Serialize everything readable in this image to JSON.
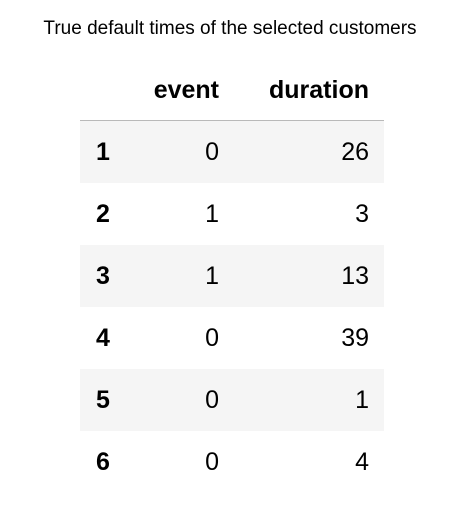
{
  "caption": "True default times of the selected customers",
  "table": {
    "columns": [
      "event",
      "duration"
    ],
    "rows": [
      {
        "index": "1",
        "event": "0",
        "duration": "26"
      },
      {
        "index": "2",
        "event": "1",
        "duration": "3"
      },
      {
        "index": "3",
        "event": "1",
        "duration": "13"
      },
      {
        "index": "4",
        "event": "0",
        "duration": "39"
      },
      {
        "index": "5",
        "event": "0",
        "duration": "1"
      },
      {
        "index": "6",
        "event": "0",
        "duration": "4"
      }
    ]
  }
}
